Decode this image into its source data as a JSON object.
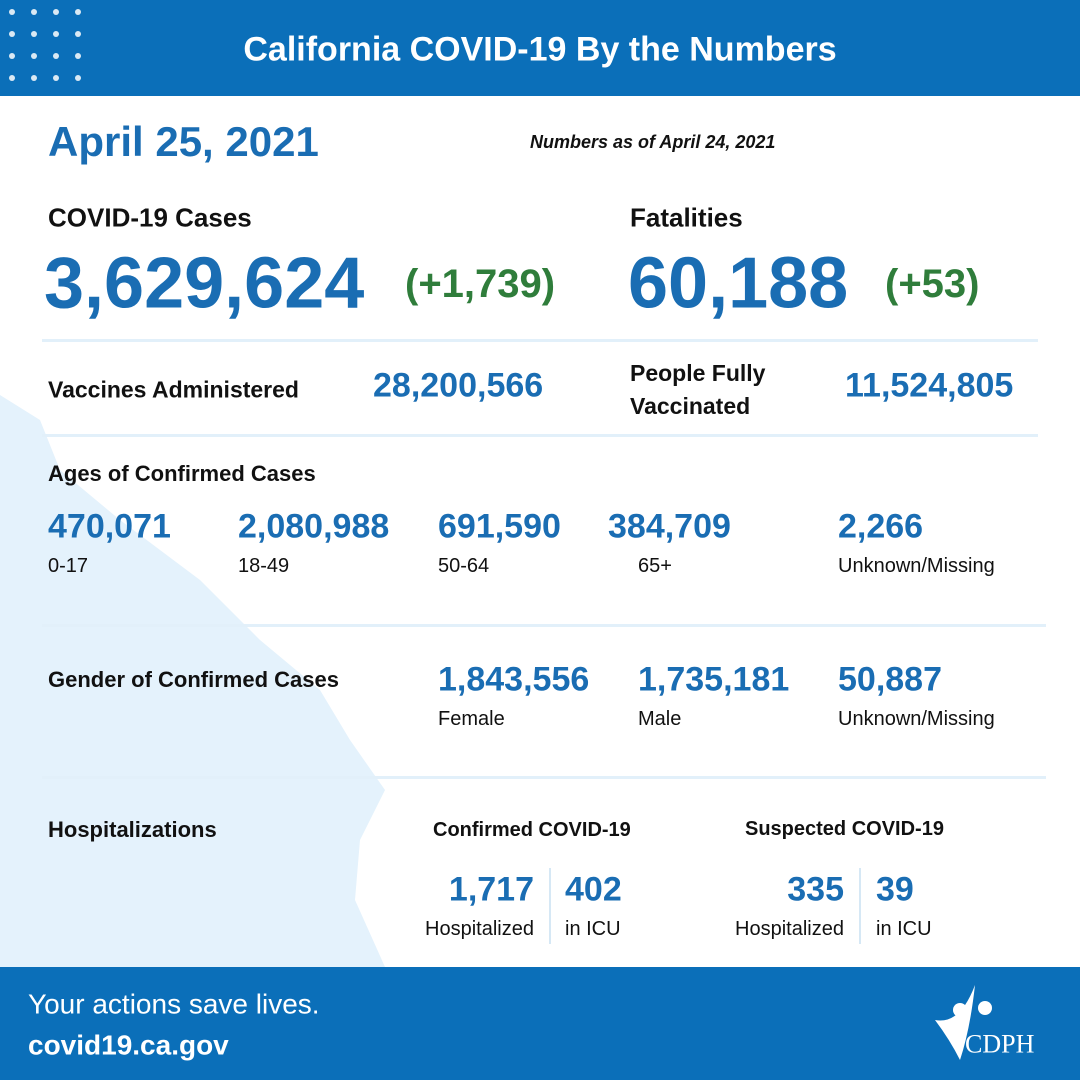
{
  "header": {
    "title": "California COVID-19 By the Numbers"
  },
  "date": "April 25, 2021",
  "as_of": "Numbers as of April 24, 2021",
  "cases": {
    "label": "COVID-19 Cases",
    "value": "3,629,624",
    "change": "(+1,739)"
  },
  "fatalities": {
    "label": "Fatalities",
    "value": "60,188",
    "change": "(+53)"
  },
  "vaccines": {
    "label": "Vaccines Administered",
    "value": "28,200,566"
  },
  "fully_vaccinated": {
    "label": "People Fully Vaccinated",
    "value": "11,524,805"
  },
  "ages": {
    "title": "Ages of Confirmed Cases",
    "groups": [
      {
        "value": "470,071",
        "label": "0-17"
      },
      {
        "value": "2,080,988",
        "label": "18-49"
      },
      {
        "value": "691,590",
        "label": "50-64"
      },
      {
        "value": "384,709",
        "label": "65+"
      },
      {
        "value": "2,266",
        "label": "Unknown/Missing"
      }
    ]
  },
  "gender": {
    "title": "Gender of Confirmed Cases",
    "groups": [
      {
        "value": "1,843,556",
        "label": "Female"
      },
      {
        "value": "1,735,181",
        "label": "Male"
      },
      {
        "value": "50,887",
        "label": "Unknown/Missing"
      }
    ]
  },
  "hospitalizations": {
    "title": "Hospitalizations",
    "confirmed": {
      "title": "Confirmed COVID-19",
      "hospitalized": {
        "value": "1,717",
        "label": "Hospitalized"
      },
      "icu": {
        "value": "402",
        "label": "in ICU"
      }
    },
    "suspected": {
      "title": "Suspected COVID-19",
      "hospitalized": {
        "value": "335",
        "label": "Hospitalized"
      },
      "icu": {
        "value": "39",
        "label": "in ICU"
      }
    }
  },
  "footer": {
    "tagline": "Your actions save lives.",
    "url": "covid19.ca.gov",
    "logo": "CDPH"
  }
}
